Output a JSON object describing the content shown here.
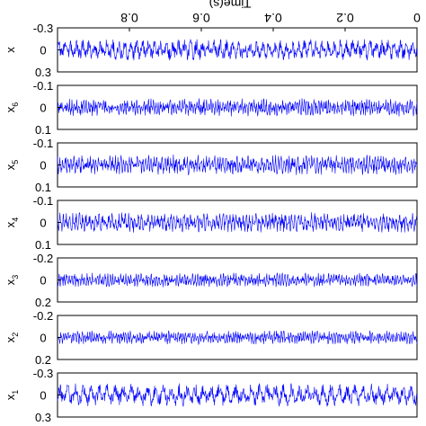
{
  "chart_data": {
    "type": "line",
    "xlabel": "Time(s)",
    "xlim": [
      0,
      1
    ],
    "x_ticks": [
      {
        "value": 0,
        "label": "0"
      },
      {
        "value": 0.2,
        "label": "0.2"
      },
      {
        "value": 0.4,
        "label": "0.4"
      },
      {
        "value": 0.6,
        "label": "0.6"
      },
      {
        "value": 0.8,
        "label": "0.8"
      }
    ],
    "line_color": "#0000ff",
    "grid": false,
    "series": [
      {
        "name": "x",
        "ylabel": "x",
        "ylim": [
          -0.3,
          0.3
        ],
        "ticks": [
          {
            "value": -0.3,
            "label": "-0.3"
          },
          {
            "value": 0,
            "label": "0"
          },
          {
            "value": 0.3,
            "label": "0.3"
          }
        ],
        "amplitude": 0.16,
        "cycles": 60
      },
      {
        "name": "x_6",
        "ylabel": "x",
        "ylabel_sub": "6",
        "ylim": [
          -0.1,
          0.1
        ],
        "ticks": [
          {
            "value": -0.1,
            "label": "-0.1"
          },
          {
            "value": 0,
            "label": "0"
          },
          {
            "value": 0.1,
            "label": "0.1"
          }
        ],
        "amplitude": 0.045,
        "cycles": 150
      },
      {
        "name": "x_5",
        "ylabel": "x",
        "ylabel_sub": "5",
        "ylim": [
          -0.1,
          0.1
        ],
        "ticks": [
          {
            "value": -0.1,
            "label": "-0.1"
          },
          {
            "value": 0,
            "label": "0"
          },
          {
            "value": 0.1,
            "label": "0.1"
          }
        ],
        "amplitude": 0.05,
        "cycles": 130
      },
      {
        "name": "x_4",
        "ylabel": "x",
        "ylabel_sub": "4",
        "ylim": [
          -0.1,
          0.1
        ],
        "ticks": [
          {
            "value": -0.1,
            "label": "-0.1"
          },
          {
            "value": 0,
            "label": "0"
          },
          {
            "value": 0.1,
            "label": "0.1"
          }
        ],
        "amplitude": 0.05,
        "cycles": 110
      },
      {
        "name": "x_3",
        "ylabel": "x",
        "ylabel_sub": "3",
        "ylim": [
          -0.2,
          0.2
        ],
        "ticks": [
          {
            "value": -0.2,
            "label": "-0.2"
          },
          {
            "value": 0,
            "label": "0"
          },
          {
            "value": 0.2,
            "label": "0.2"
          }
        ],
        "amplitude": 0.07,
        "cycles": 140
      },
      {
        "name": "x_2",
        "ylabel": "x",
        "ylabel_sub": "2",
        "ylim": [
          -0.2,
          0.2
        ],
        "ticks": [
          {
            "value": -0.2,
            "label": "-0.2"
          },
          {
            "value": 0,
            "label": "0"
          },
          {
            "value": 0.2,
            "label": "0.2"
          }
        ],
        "amplitude": 0.07,
        "cycles": 150
      },
      {
        "name": "x_1",
        "ylabel": "x",
        "ylabel_sub": "1",
        "ylim": [
          -0.3,
          0.3
        ],
        "ticks": [
          {
            "value": -0.3,
            "label": "-0.3"
          },
          {
            "value": 0,
            "label": "0"
          },
          {
            "value": 0.3,
            "label": "0.3"
          }
        ],
        "amplitude": 0.17,
        "cycles": 45
      }
    ]
  }
}
